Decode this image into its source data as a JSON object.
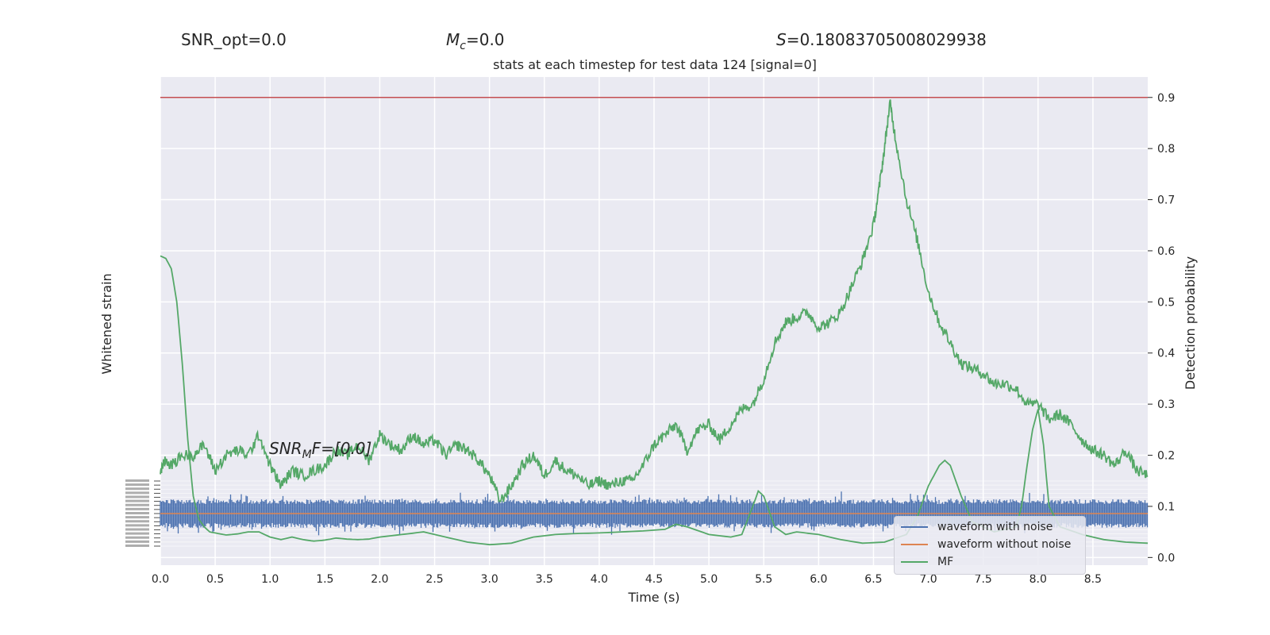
{
  "stats": {
    "snr_opt": "SNR_opt=0.0",
    "mc_symbol": "M",
    "mc_sub": "c",
    "mc_value": "=0.0",
    "s_symbol": "S",
    "s_value": "=0.18083705008029938",
    "snrmf_symbol": "SNR",
    "snrmf_sub": "M",
    "snrmf_rest": "F=[0.0]"
  },
  "chart_data": {
    "type": "line",
    "title": "stats at each timestep for test data 124 [signal=0]",
    "xlabel": "Time (s)",
    "ylabel_left": "Whitened strain",
    "ylabel_right": "Detection probability",
    "xlim": [
      0.0,
      9.0
    ],
    "ylim_right": [
      -0.015,
      0.94
    ],
    "x_ticks": [
      "0.0",
      "0.5",
      "1.0",
      "1.5",
      "2.0",
      "2.5",
      "3.0",
      "3.5",
      "4.0",
      "4.5",
      "5.0",
      "5.5",
      "6.0",
      "6.5",
      "7.0",
      "7.5",
      "8.0",
      "8.5"
    ],
    "y_ticks_right": [
      "0.0",
      "0.1",
      "0.2",
      "0.3",
      "0.4",
      "0.5",
      "0.6",
      "0.7",
      "0.8",
      "0.9"
    ],
    "threshold": 0.9,
    "grid": true,
    "legend_position": "bottom-right",
    "colors": {
      "noise": "#4c72b0",
      "clean": "#dd8452",
      "mf": "#55a868",
      "threshold": "#c44e52",
      "background": "#eaeaf2"
    },
    "series": [
      {
        "name": "waveform with noise",
        "type": "noise",
        "amplitude_band": [
          -1.0,
          1.0
        ]
      },
      {
        "name": "waveform without noise",
        "type": "flat",
        "value": 0.0
      },
      {
        "name": "MF",
        "x": [
          0.0,
          0.05,
          0.1,
          0.15,
          0.2,
          0.25,
          0.3,
          0.35,
          0.4,
          0.45,
          0.5,
          0.6,
          0.7,
          0.8,
          0.9,
          1.0,
          1.1,
          1.2,
          1.3,
          1.4,
          1.5,
          1.6,
          1.7,
          1.8,
          1.9,
          2.0,
          2.2,
          2.4,
          2.6,
          2.8,
          3.0,
          3.2,
          3.4,
          3.6,
          3.8,
          4.0,
          4.2,
          4.4,
          4.6,
          4.7,
          4.8,
          5.0,
          5.2,
          5.3,
          5.4,
          5.45,
          5.5,
          5.6,
          5.7,
          5.8,
          6.0,
          6.2,
          6.4,
          6.6,
          6.8,
          6.9,
          7.0,
          7.05,
          7.1,
          7.15,
          7.2,
          7.3,
          7.4,
          7.6,
          7.8,
          7.85,
          7.9,
          7.95,
          8.0,
          8.05,
          8.1,
          8.2,
          8.4,
          8.6,
          8.8,
          9.0
        ],
        "y": [
          0.59,
          0.585,
          0.565,
          0.5,
          0.38,
          0.23,
          0.12,
          0.075,
          0.06,
          0.05,
          0.048,
          0.044,
          0.046,
          0.05,
          0.05,
          0.04,
          0.035,
          0.04,
          0.035,
          0.032,
          0.034,
          0.038,
          0.036,
          0.035,
          0.036,
          0.04,
          0.045,
          0.05,
          0.04,
          0.03,
          0.025,
          0.028,
          0.04,
          0.045,
          0.047,
          0.048,
          0.05,
          0.052,
          0.055,
          0.065,
          0.06,
          0.045,
          0.04,
          0.045,
          0.1,
          0.13,
          0.12,
          0.06,
          0.045,
          0.05,
          0.045,
          0.035,
          0.028,
          0.03,
          0.045,
          0.08,
          0.14,
          0.16,
          0.18,
          0.19,
          0.18,
          0.12,
          0.07,
          0.05,
          0.06,
          0.1,
          0.18,
          0.25,
          0.29,
          0.22,
          0.1,
          0.06,
          0.045,
          0.035,
          0.03,
          0.028
        ]
      },
      {
        "name": "detection probability",
        "x": [
          0.0,
          0.05,
          0.1,
          0.2,
          0.3,
          0.4,
          0.5,
          0.6,
          0.7,
          0.8,
          0.9,
          1.0,
          1.1,
          1.2,
          1.3,
          1.4,
          1.5,
          1.6,
          1.7,
          1.8,
          1.9,
          2.0,
          2.1,
          2.2,
          2.3,
          2.4,
          2.5,
          2.6,
          2.7,
          2.8,
          2.9,
          3.0,
          3.1,
          3.2,
          3.3,
          3.4,
          3.5,
          3.6,
          3.7,
          3.8,
          3.9,
          4.0,
          4.1,
          4.2,
          4.3,
          4.4,
          4.5,
          4.6,
          4.7,
          4.8,
          4.9,
          5.0,
          5.1,
          5.2,
          5.3,
          5.4,
          5.5,
          5.6,
          5.7,
          5.8,
          5.9,
          6.0,
          6.1,
          6.2,
          6.3,
          6.4,
          6.5,
          6.55,
          6.6,
          6.65,
          6.7,
          6.8,
          6.9,
          7.0,
          7.1,
          7.2,
          7.3,
          7.4,
          7.5,
          7.6,
          7.7,
          7.8,
          7.9,
          8.0,
          8.1,
          8.2,
          8.3,
          8.4,
          8.5,
          8.6,
          8.7,
          8.8,
          8.9,
          9.0
        ],
        "y": [
          0.17,
          0.19,
          0.18,
          0.2,
          0.2,
          0.22,
          0.17,
          0.2,
          0.21,
          0.2,
          0.24,
          0.18,
          0.14,
          0.17,
          0.16,
          0.17,
          0.18,
          0.21,
          0.2,
          0.22,
          0.19,
          0.24,
          0.22,
          0.21,
          0.24,
          0.22,
          0.23,
          0.2,
          0.22,
          0.21,
          0.19,
          0.16,
          0.11,
          0.14,
          0.18,
          0.2,
          0.16,
          0.19,
          0.17,
          0.16,
          0.14,
          0.15,
          0.14,
          0.15,
          0.15,
          0.18,
          0.22,
          0.24,
          0.26,
          0.21,
          0.25,
          0.26,
          0.23,
          0.26,
          0.29,
          0.3,
          0.35,
          0.42,
          0.46,
          0.47,
          0.48,
          0.45,
          0.46,
          0.48,
          0.53,
          0.58,
          0.65,
          0.72,
          0.8,
          0.89,
          0.82,
          0.7,
          0.62,
          0.52,
          0.46,
          0.42,
          0.38,
          0.37,
          0.36,
          0.34,
          0.34,
          0.33,
          0.3,
          0.3,
          0.27,
          0.28,
          0.26,
          0.23,
          0.21,
          0.2,
          0.18,
          0.21,
          0.17,
          0.16
        ]
      }
    ]
  }
}
